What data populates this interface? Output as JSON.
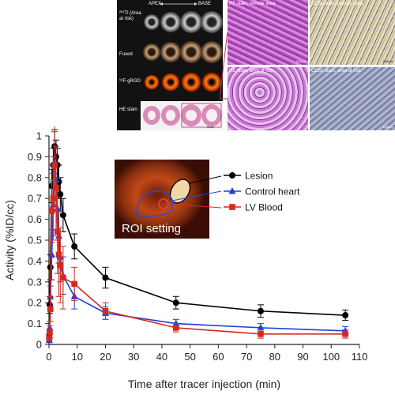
{
  "figure": {
    "scan_panel": {
      "header_left": "APEX",
      "header_right": "BASE",
      "row_labels": [
        "²⁰¹Tl (Area at risk)",
        "Fused",
        "¹⁸F-gRGD",
        "HE stain"
      ],
      "scale_label": "5mm"
    },
    "histology": {
      "top_left": "HE stain, remote area",
      "top_right": "CD31 stain, remote area",
      "bottom_left": "HE stain, area at risk",
      "bottom_right": "CD31 stain, area at risk",
      "scale_top_left": "100μm",
      "scale_top_right": "100μm",
      "scale_bottom_right": "100μm"
    },
    "roi_inset": {
      "label": "ROI setting"
    }
  },
  "chart_data": {
    "type": "line",
    "xlabel": "Time after tracer injection (min)",
    "ylabel": "Activity (%ID/cc)",
    "xlim": [
      0,
      110
    ],
    "ylim": [
      0,
      1
    ],
    "xticks": [
      0,
      10,
      20,
      30,
      40,
      50,
      60,
      70,
      80,
      90,
      100,
      110
    ],
    "yticks": [
      0,
      0.1,
      0.2,
      0.3,
      0.4,
      0.5,
      0.6,
      0.7,
      0.8,
      0.9,
      1
    ],
    "ytick_labels": [
      "0",
      "0.1",
      "0.2",
      "0.3",
      "0.4",
      "0.5",
      "0.6",
      "0.7",
      "0.8",
      "0.9",
      "1"
    ],
    "grid": false,
    "legend_position": "upper-right",
    "series": [
      {
        "name": "Lesion",
        "color": "#000000",
        "marker": "circle",
        "x": [
          0.1,
          0.25,
          0.5,
          1,
          1.5,
          2,
          2.5,
          3,
          3.5,
          4,
          5,
          9,
          20,
          45,
          75,
          105
        ],
        "y": [
          0.04,
          0.19,
          0.37,
          0.76,
          0.86,
          0.95,
          0.9,
          0.86,
          0.78,
          0.72,
          0.62,
          0.47,
          0.32,
          0.2,
          0.16,
          0.14
        ],
        "err": [
          0.01,
          0.04,
          0.06,
          0.08,
          0.08,
          0.08,
          0.08,
          0.08,
          0.08,
          0.08,
          0.08,
          0.06,
          0.05,
          0.03,
          0.03,
          0.025
        ]
      },
      {
        "name": "Control heart",
        "color": "#1f3fd6",
        "marker": "triangle",
        "x": [
          0.1,
          0.25,
          0.5,
          1,
          1.5,
          2,
          2.5,
          3,
          3.5,
          4,
          5,
          9,
          20,
          45,
          75,
          105
        ],
        "y": [
          0.02,
          0.08,
          0.23,
          0.43,
          0.67,
          0.87,
          0.79,
          0.65,
          0.52,
          0.42,
          0.33,
          0.23,
          0.15,
          0.1,
          0.08,
          0.065
        ],
        "err": [
          0.01,
          0.03,
          0.05,
          0.12,
          0.15,
          0.15,
          0.15,
          0.15,
          0.13,
          0.12,
          0.09,
          0.06,
          0.03,
          0.02,
          0.02,
          0.02
        ]
      },
      {
        "name": "LV Blood",
        "color": "#d32a1e",
        "marker": "square",
        "x": [
          0.1,
          0.25,
          0.5,
          1,
          1.5,
          2,
          2.5,
          3,
          3.5,
          4,
          5,
          9,
          20,
          45,
          75,
          105
        ],
        "y": [
          0.03,
          0.06,
          0.17,
          0.64,
          0.7,
          0.86,
          0.75,
          0.54,
          0.43,
          0.38,
          0.32,
          0.29,
          0.16,
          0.08,
          0.05,
          0.05
        ],
        "err": [
          0.01,
          0.03,
          0.06,
          0.15,
          0.2,
          0.2,
          0.2,
          0.2,
          0.2,
          0.18,
          0.15,
          0.08,
          0.04,
          0.02,
          0.02,
          0.02
        ]
      }
    ]
  }
}
